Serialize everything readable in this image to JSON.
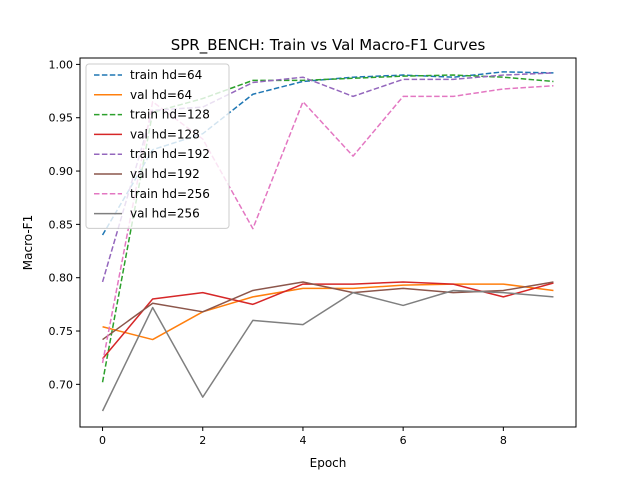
{
  "chart_data": {
    "type": "line",
    "title": "SPR_BENCH: Train vs Val Macro-F1 Curves",
    "xlabel": "Epoch",
    "ylabel": "Macro-F1",
    "xlim": [
      -0.45,
      9.45
    ],
    "ylim": [
      0.66,
      1.006
    ],
    "x_ticks": [
      0,
      2,
      4,
      6,
      8
    ],
    "y_ticks": [
      0.7,
      0.75,
      0.8,
      0.85,
      0.9,
      0.95,
      1.0
    ],
    "y_tick_labels": [
      "0.70",
      "0.75",
      "0.80",
      "0.85",
      "0.90",
      "0.95",
      "1.00"
    ],
    "legend_position": "upper-left",
    "grid": false,
    "x": [
      0,
      1,
      2,
      3,
      4,
      5,
      6,
      7,
      8,
      9
    ],
    "series": [
      {
        "name": "train hd=64",
        "style": "dashed",
        "color": "#1f77b4",
        "values": [
          0.84,
          0.92,
          0.935,
          0.972,
          0.984,
          0.988,
          0.99,
          0.988,
          0.993,
          0.992
        ]
      },
      {
        "name": "val hd=64",
        "style": "solid",
        "color": "#ff7f0e",
        "values": [
          0.754,
          0.742,
          0.768,
          0.782,
          0.79,
          0.79,
          0.793,
          0.794,
          0.794,
          0.788
        ]
      },
      {
        "name": "train hd=128",
        "style": "dashed",
        "color": "#2ca02c",
        "values": [
          0.702,
          0.955,
          0.968,
          0.985,
          0.985,
          0.987,
          0.989,
          0.99,
          0.988,
          0.984
        ]
      },
      {
        "name": "val hd=128",
        "style": "solid",
        "color": "#d62728",
        "values": [
          0.724,
          0.78,
          0.786,
          0.775,
          0.794,
          0.794,
          0.796,
          0.794,
          0.782,
          0.795
        ]
      },
      {
        "name": "train hd=192",
        "style": "dashed",
        "color": "#9467bd",
        "values": [
          0.796,
          0.957,
          0.96,
          0.983,
          0.988,
          0.97,
          0.986,
          0.986,
          0.99,
          0.992
        ]
      },
      {
        "name": "val hd=192",
        "style": "solid",
        "color": "#8c564b",
        "values": [
          0.742,
          0.776,
          0.768,
          0.788,
          0.796,
          0.786,
          0.79,
          0.786,
          0.788,
          0.796
        ]
      },
      {
        "name": "train hd=256",
        "style": "dashed",
        "color": "#e377c2",
        "values": [
          0.72,
          0.965,
          0.93,
          0.846,
          0.965,
          0.914,
          0.97,
          0.97,
          0.977,
          0.98
        ]
      },
      {
        "name": "val hd=256",
        "style": "solid",
        "color": "#7f7f7f",
        "values": [
          0.675,
          0.772,
          0.688,
          0.76,
          0.756,
          0.786,
          0.774,
          0.788,
          0.786,
          0.782
        ]
      }
    ]
  }
}
